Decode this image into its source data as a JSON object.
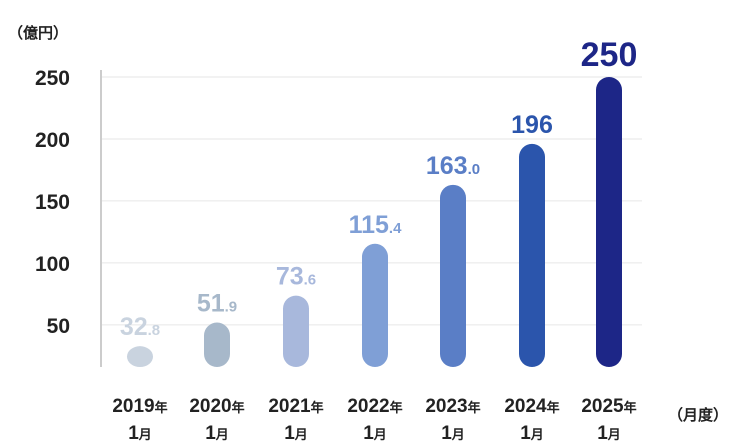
{
  "chart_data": {
    "type": "bar",
    "ylabel": "（億円）",
    "xlabel": "（月度）",
    "categories": [
      {
        "year": "2019",
        "year_suffix": "年",
        "month": "1",
        "month_suffix": "月"
      },
      {
        "year": "2020",
        "year_suffix": "年",
        "month": "1",
        "month_suffix": "月"
      },
      {
        "year": "2021",
        "year_suffix": "年",
        "month": "1",
        "month_suffix": "月"
      },
      {
        "year": "2022",
        "year_suffix": "年",
        "month": "1",
        "month_suffix": "月"
      },
      {
        "year": "2023",
        "year_suffix": "年",
        "month": "1",
        "month_suffix": "月"
      },
      {
        "year": "2024",
        "year_suffix": "年",
        "month": "1",
        "month_suffix": "月"
      },
      {
        "year": "2025",
        "year_suffix": "年",
        "month": "1",
        "month_suffix": "月"
      }
    ],
    "values": [
      32.8,
      51.9,
      73.6,
      115.4,
      163.0,
      196,
      250
    ],
    "data_labels": [
      {
        "int": "32",
        "dec": ".8"
      },
      {
        "int": "51",
        "dec": ".9"
      },
      {
        "int": "73",
        "dec": ".6"
      },
      {
        "int": "115",
        "dec": ".4"
      },
      {
        "int": "163",
        "dec": ".0"
      },
      {
        "int": "196",
        "dec": ""
      },
      {
        "int": "250",
        "dec": ""
      }
    ],
    "bar_colors": [
      "#c9d3df",
      "#a7b8ca",
      "#a8b8dc",
      "#7f9fd6",
      "#5a7ec6",
      "#2b55ac",
      "#1d2687"
    ],
    "label_colors": [
      "#c9d3df",
      "#a7b8ca",
      "#a8b8dc",
      "#7f9fd6",
      "#5a7ec6",
      "#2b55ac",
      "#1d2687"
    ],
    "yticks": [
      50,
      100,
      150,
      200,
      250
    ],
    "ylim": [
      16,
      250
    ],
    "grid": true,
    "axis_color": "#cccccc",
    "grid_color": "#e6e6e6",
    "tick_color": "#222222"
  }
}
